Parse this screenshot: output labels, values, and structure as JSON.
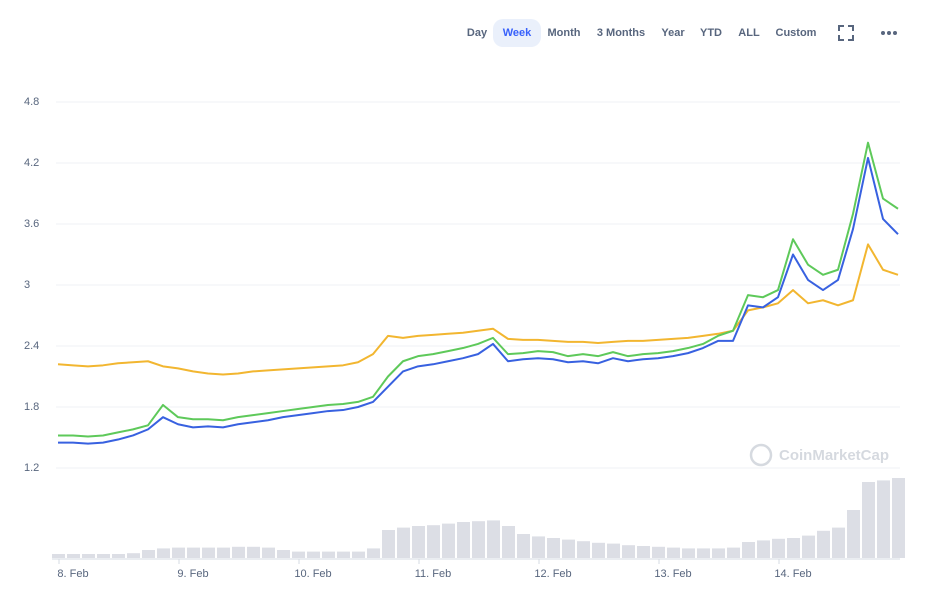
{
  "toolbar": {
    "tabs": [
      "Day",
      "Week",
      "Month",
      "3 Months",
      "Year",
      "YTD",
      "ALL",
      "Custom"
    ],
    "active_tab": 1
  },
  "chart_data": {
    "type": "line",
    "watermark": "CoinMarketCap",
    "categories": [
      null,
      "8. Feb",
      null,
      null,
      null,
      null,
      null,
      null,
      null,
      "9. Feb",
      null,
      null,
      null,
      null,
      null,
      null,
      null,
      "10. Feb",
      null,
      null,
      null,
      null,
      null,
      null,
      null,
      "11. Feb",
      null,
      null,
      null,
      null,
      null,
      null,
      null,
      "12. Feb",
      null,
      null,
      null,
      null,
      null,
      null,
      null,
      "13. Feb",
      null,
      null,
      null,
      null,
      null,
      null,
      null,
      "14. Feb",
      null,
      null,
      null,
      null,
      null,
      null,
      null
    ],
    "series": [
      {
        "color": "#f2b630",
        "values": [
          2.22,
          2.21,
          2.2,
          2.21,
          2.23,
          2.24,
          2.25,
          2.2,
          2.18,
          2.15,
          2.13,
          2.12,
          2.13,
          2.15,
          2.16,
          2.17,
          2.18,
          2.19,
          2.2,
          2.21,
          2.24,
          2.32,
          2.5,
          2.48,
          2.5,
          2.51,
          2.52,
          2.53,
          2.55,
          2.57,
          2.47,
          2.46,
          2.46,
          2.45,
          2.44,
          2.44,
          2.43,
          2.44,
          2.45,
          2.45,
          2.46,
          2.47,
          2.48,
          2.5,
          2.52,
          2.55,
          2.75,
          2.78,
          2.82,
          2.95,
          2.82,
          2.85,
          2.8,
          2.85,
          3.4,
          3.15,
          3.1
        ]
      },
      {
        "color": "#5ec95a",
        "values": [
          1.52,
          1.52,
          1.51,
          1.52,
          1.55,
          1.58,
          1.62,
          1.82,
          1.7,
          1.68,
          1.68,
          1.67,
          1.7,
          1.72,
          1.74,
          1.76,
          1.78,
          1.8,
          1.82,
          1.83,
          1.85,
          1.9,
          2.1,
          2.25,
          2.3,
          2.32,
          2.35,
          2.38,
          2.42,
          2.48,
          2.32,
          2.33,
          2.35,
          2.34,
          2.3,
          2.32,
          2.3,
          2.34,
          2.3,
          2.32,
          2.33,
          2.35,
          2.38,
          2.42,
          2.5,
          2.55,
          2.9,
          2.88,
          2.95,
          3.45,
          3.2,
          3.1,
          3.15,
          3.7,
          4.4,
          3.85,
          3.75
        ]
      },
      {
        "color": "#3861e0",
        "values": [
          1.45,
          1.45,
          1.44,
          1.45,
          1.48,
          1.52,
          1.58,
          1.7,
          1.63,
          1.6,
          1.61,
          1.6,
          1.63,
          1.65,
          1.67,
          1.7,
          1.72,
          1.74,
          1.76,
          1.77,
          1.8,
          1.85,
          2.0,
          2.15,
          2.2,
          2.22,
          2.25,
          2.28,
          2.32,
          2.42,
          2.25,
          2.27,
          2.28,
          2.27,
          2.24,
          2.25,
          2.23,
          2.28,
          2.25,
          2.27,
          2.28,
          2.3,
          2.33,
          2.38,
          2.45,
          2.45,
          2.8,
          2.78,
          2.88,
          3.3,
          3.05,
          2.95,
          3.05,
          3.55,
          4.25,
          3.65,
          3.5
        ]
      }
    ],
    "volume": {
      "color": "#dcdee5",
      "ylim": [
        0,
        100
      ],
      "values": [
        5,
        5,
        5,
        5,
        5,
        6,
        10,
        12,
        13,
        13,
        13,
        13,
        14,
        14,
        13,
        10,
        8,
        8,
        8,
        8,
        8,
        12,
        35,
        38,
        40,
        41,
        43,
        45,
        46,
        47,
        40,
        30,
        27,
        25,
        23,
        21,
        19,
        18,
        16,
        15,
        14,
        13,
        12,
        12,
        12,
        13,
        20,
        22,
        24,
        25,
        28,
        34,
        38,
        60,
        95,
        97,
        100
      ]
    },
    "ylim": [
      1.2,
      4.8
    ],
    "yticks": [
      1.2,
      1.8,
      2.4,
      3,
      3.6,
      4.2,
      4.8
    ],
    "grid": true
  }
}
